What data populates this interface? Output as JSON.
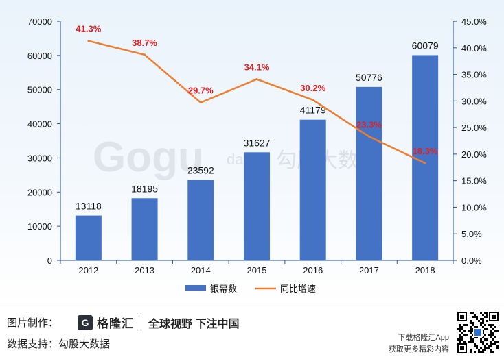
{
  "chart_data": {
    "type": "bar+line",
    "categories": [
      "2012",
      "2013",
      "2014",
      "2015",
      "2016",
      "2017",
      "2018"
    ],
    "series": [
      {
        "name": "银幕数",
        "type": "bar",
        "axis": "left",
        "values": [
          13118,
          18195,
          23592,
          31627,
          41179,
          50776,
          60079
        ],
        "labels": [
          "13118",
          "18195",
          "23592",
          "31627",
          "41179",
          "50776",
          "60079"
        ],
        "color": "#4472c4"
      },
      {
        "name": "同比增速",
        "type": "line",
        "axis": "right",
        "values": [
          41.3,
          38.7,
          29.7,
          34.1,
          30.2,
          23.3,
          18.3
        ],
        "labels": [
          "41.3%",
          "38.7%",
          "29.7%",
          "34.1%",
          "30.2%",
          "23.3%",
          "18.3%"
        ],
        "color": "#ed7d31",
        "label_color": "#e02020"
      }
    ],
    "y_left": {
      "min": 0,
      "max": 70000,
      "step": 10000,
      "ticks": [
        "0",
        "10000",
        "20000",
        "30000",
        "40000",
        "50000",
        "60000",
        "70000"
      ]
    },
    "y_right": {
      "min": 0,
      "max": 45,
      "step": 5,
      "ticks": [
        "0.0%",
        "5.0%",
        "10.0%",
        "15.0%",
        "20.0%",
        "25.0%",
        "30.0%",
        "35.0%",
        "40.0%",
        "45.0%"
      ]
    },
    "legend": {
      "position": "bottom",
      "items": [
        "银幕数",
        "同比增速"
      ]
    },
    "grid": false
  },
  "watermark": {
    "text": "Gogu data 勾股大数据"
  },
  "footer": {
    "credit_label": "图片制作：",
    "logo_glyph": "G",
    "logo_name": "格隆汇",
    "slogan": "全球视野 下注中国",
    "source_label": "数据支持：",
    "source_name": "勾股大数据",
    "app_line1": "下载格隆汇App",
    "app_line2": "获取更多精彩内容"
  }
}
